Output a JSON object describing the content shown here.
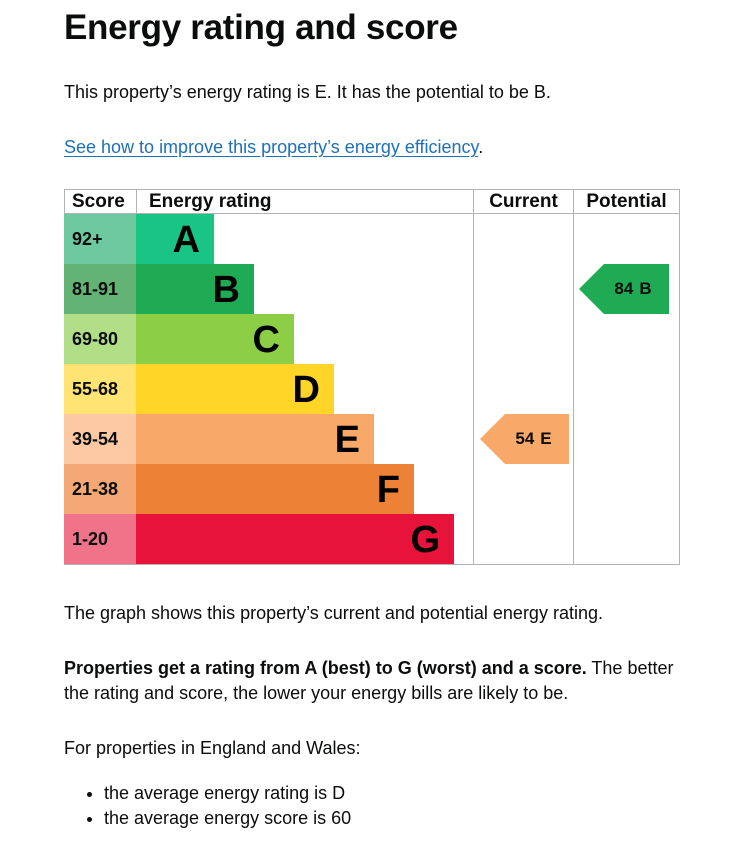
{
  "heading": "Energy rating and score",
  "lead": "This property’s energy rating is E. It has the potential to be B.",
  "improve_link": "See how to improve this property’s energy efficiency",
  "improve_link_suffix": ".",
  "table": {
    "headers": {
      "score": "Score",
      "rating": "Energy rating",
      "current": "Current",
      "potential": "Potential"
    },
    "bands": [
      {
        "score": "92+",
        "letter": "A",
        "bar_color": "#19c484",
        "score_color": "#6ec9a0"
      },
      {
        "score": "81-91",
        "letter": "B",
        "bar_color": "#1fab54",
        "score_color": "#63b375"
      },
      {
        "score": "69-80",
        "letter": "C",
        "bar_color": "#8cce46",
        "score_color": "#b2de88"
      },
      {
        "score": "55-68",
        "letter": "D",
        "bar_color": "#ffd627",
        "score_color": "#ffe474"
      },
      {
        "score": "39-54",
        "letter": "E",
        "bar_color": "#f8a96a",
        "score_color": "#fcc9a2"
      },
      {
        "score": "21-38",
        "letter": "F",
        "bar_color": "#ed8135",
        "score_color": "#f3a875"
      },
      {
        "score": "1-20",
        "letter": "G",
        "bar_color": "#e7133a",
        "score_color": "#f0738a"
      }
    ],
    "current": {
      "score": "54",
      "letter": "E",
      "color": "#f8a96a"
    },
    "potential": {
      "score": "84",
      "letter": "B",
      "color": "#1fab54"
    }
  },
  "caption": "The graph shows this property’s current and potential energy rating.",
  "rating_para_bold": "Properties get a rating from A (best) to G (worst) and a score.",
  "rating_para_rest": " The better the rating and score, the lower your energy bills are likely to be.",
  "averages_intro": "For properties in England and Wales:",
  "averages": [
    "the average energy rating is D",
    "the average energy score is 60"
  ]
}
